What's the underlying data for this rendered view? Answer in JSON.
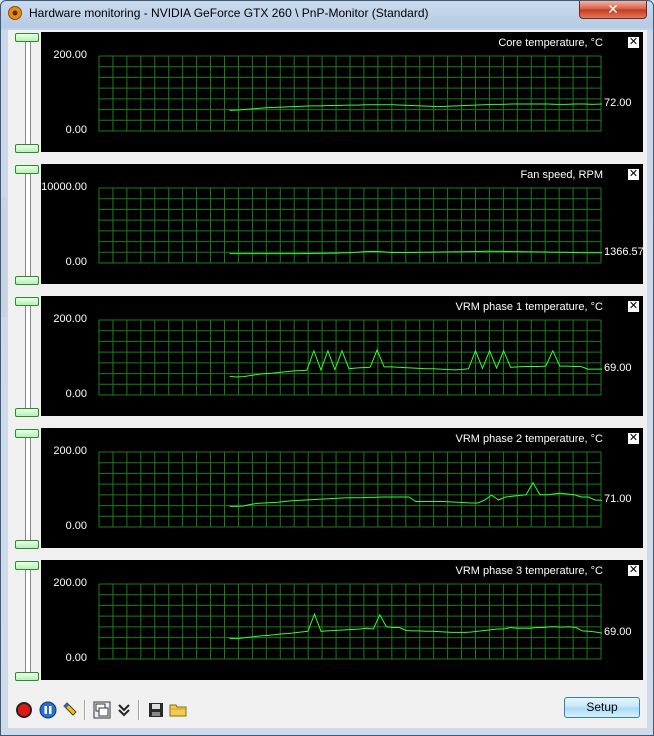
{
  "window": {
    "title": "Hardware monitoring - NVIDIA GeForce GTX 260 \\ PnP-Monitor (Standard)",
    "close_label": "✕"
  },
  "graphs": [
    {
      "title": "Core temperature, °C",
      "y_max_label": "200.00",
      "y_min_label": "0.00",
      "current_value": "72.00",
      "close_label": "✕",
      "chart_data": {
        "type": "line",
        "ylim": [
          0,
          200
        ],
        "y": [
          55,
          56,
          58,
          60,
          62,
          63,
          64,
          65,
          66,
          67,
          67,
          68,
          68,
          69,
          69,
          70,
          70,
          70,
          70,
          69,
          68,
          67,
          66,
          65,
          66,
          67,
          68,
          69,
          70,
          71,
          71,
          72,
          72,
          72,
          72,
          72,
          71,
          71,
          72,
          72,
          71,
          72
        ]
      }
    },
    {
      "title": "Fan speed, RPM",
      "y_max_label": "10000.00",
      "y_min_label": "0.00",
      "current_value": "1366.57",
      "close_label": "✕",
      "chart_data": {
        "type": "line",
        "ylim": [
          0,
          10000
        ],
        "y": [
          1250,
          1250,
          1250,
          1250,
          1250,
          1250,
          1250,
          1250,
          1260,
          1280,
          1300,
          1320,
          1350,
          1400,
          1500,
          1550,
          1500,
          1400,
          1400,
          1400,
          1420,
          1440,
          1460,
          1480,
          1500,
          1520,
          1540,
          1560,
          1560,
          1540,
          1520,
          1500,
          1480,
          1460,
          1440,
          1420,
          1400,
          1380,
          1370,
          1366.57
        ]
      }
    },
    {
      "title": "VRM phase 1 temperature, °C",
      "y_max_label": "200.00",
      "y_min_label": "0.00",
      "current_value": "69.00",
      "close_label": "✕",
      "chart_data": {
        "type": "line",
        "ylim": [
          0,
          200
        ],
        "y": [
          50,
          48,
          49,
          52,
          55,
          57,
          58,
          60,
          62,
          64,
          65,
          66,
          118,
          67,
          118,
          68,
          118,
          70,
          72,
          73,
          74,
          120,
          75,
          75,
          74,
          73,
          72,
          71,
          70,
          70,
          69,
          68,
          67,
          68,
          70,
          118,
          71,
          118,
          72,
          118,
          74,
          75,
          76,
          76,
          76,
          77,
          118,
          77,
          77,
          76,
          76,
          69,
          69,
          69
        ]
      }
    },
    {
      "title": "VRM phase 2 temperature, °C",
      "y_max_label": "200.00",
      "y_min_label": "0.00",
      "current_value": "71.00",
      "close_label": "✕",
      "chart_data": {
        "type": "line",
        "ylim": [
          0,
          200
        ],
        "y": [
          55,
          55,
          56,
          60,
          63,
          64,
          65,
          66,
          68,
          70,
          71,
          72,
          73,
          74,
          75,
          76,
          77,
          78,
          78,
          78,
          79,
          79,
          80,
          80,
          80,
          80,
          80,
          68,
          68,
          68,
          68,
          68,
          67,
          66,
          65,
          64,
          64,
          72,
          85,
          72,
          80,
          82,
          84,
          86,
          118,
          86,
          86,
          88,
          90,
          88,
          86,
          80,
          80,
          72,
          71
        ]
      }
    },
    {
      "title": "VRM phase 3 temperature, °C",
      "y_max_label": "200.00",
      "y_min_label": "0.00",
      "current_value": "69.00",
      "close_label": "✕",
      "chart_data": {
        "type": "line",
        "ylim": [
          0,
          200
        ],
        "y": [
          55,
          54,
          56,
          58,
          60,
          62,
          63,
          65,
          67,
          68,
          70,
          72,
          74,
          120,
          74,
          75,
          76,
          77,
          78,
          79,
          80,
          82,
          80,
          118,
          86,
          84,
          84,
          76,
          75,
          75,
          74,
          74,
          73,
          72,
          71,
          71,
          71,
          72,
          74,
          76,
          78,
          80,
          80,
          84,
          82,
          82,
          82,
          84,
          84,
          86,
          86,
          85,
          86,
          84,
          75,
          74,
          72,
          69
        ]
      }
    }
  ],
  "toolbar": {
    "setup_label": "Setup"
  },
  "colors": {
    "grid": "#1a7d1a",
    "line": "#2fff2f",
    "graph_bg": "#000000"
  }
}
